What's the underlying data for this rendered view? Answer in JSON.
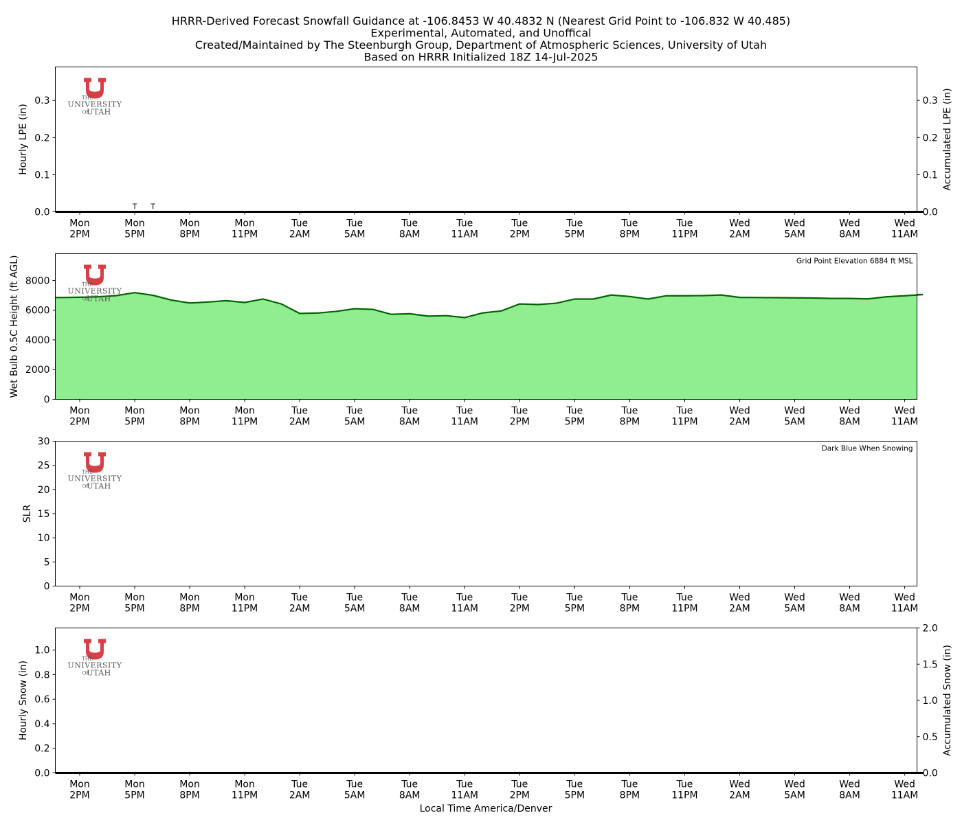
{
  "title_lines": [
    "HRRR-Derived Forecast Snowfall Guidance at -106.8453 W 40.4832 N (Nearest Grid Point to -106.832 W 40.485)",
    "Experimental, Automated, and Unoffical",
    "Created/Maintained by The Steenburgh Group, Department of Atmospheric Sciences, University of Utah",
    "Based on HRRR Initialized 18Z 14-Jul-2025"
  ],
  "logo": {
    "line1": "THE",
    "line2": "UNIVERSITY",
    "line3_prefix": "OF",
    "line3": "UTAH",
    "color": "#d64045"
  },
  "x_axis_label": "Local Time America/Denver",
  "x_ticks": [
    {
      "day": "Mon",
      "time": "2PM"
    },
    {
      "day": "Mon",
      "time": "5PM"
    },
    {
      "day": "Mon",
      "time": "8PM"
    },
    {
      "day": "Mon",
      "time": "11PM"
    },
    {
      "day": "Tue",
      "time": "2AM"
    },
    {
      "day": "Tue",
      "time": "5AM"
    },
    {
      "day": "Tue",
      "time": "8AM"
    },
    {
      "day": "Tue",
      "time": "11AM"
    },
    {
      "day": "Tue",
      "time": "2PM"
    },
    {
      "day": "Tue",
      "time": "5PM"
    },
    {
      "day": "Tue",
      "time": "8PM"
    },
    {
      "day": "Tue",
      "time": "11PM"
    },
    {
      "day": "Wed",
      "time": "2AM"
    },
    {
      "day": "Wed",
      "time": "5AM"
    },
    {
      "day": "Wed",
      "time": "8AM"
    },
    {
      "day": "Wed",
      "time": "11AM"
    }
  ],
  "chart_data": [
    {
      "type": "bar",
      "ylabel": "Hourly LPE (in)",
      "ylabel_right": "Accumulated LPE (in)",
      "ylim": [
        0,
        0.39
      ],
      "y_ticks": [
        "0.0",
        "0.1",
        "0.2",
        "0.3"
      ],
      "y_ticks_right": [
        "0.0",
        "0.1",
        "0.2",
        "0.3"
      ],
      "hours": [
        13,
        14,
        15,
        16,
        17,
        18,
        19,
        20,
        21,
        22,
        23,
        24,
        25,
        26,
        27,
        28,
        29,
        30,
        31,
        32,
        33,
        34,
        35,
        36,
        37,
        38,
        39,
        40,
        41,
        42,
        43,
        44,
        45,
        46,
        47,
        48,
        49,
        50,
        51,
        52,
        53,
        54,
        55,
        56,
        57,
        58,
        59,
        60
      ],
      "hourly_lpe": [
        0,
        0,
        0,
        0,
        0,
        0,
        0,
        0,
        0,
        0,
        0,
        0,
        0,
        0,
        0,
        0,
        0,
        0,
        0,
        0,
        0,
        0,
        0,
        0,
        0,
        0,
        0,
        0,
        0,
        0,
        0,
        0,
        0,
        0,
        0,
        0,
        0,
        0,
        0,
        0,
        0,
        0,
        0,
        0,
        0,
        0,
        0,
        0
      ],
      "accumulated_lpe": [
        0,
        0,
        0,
        0,
        0,
        0,
        0,
        0,
        0,
        0,
        0,
        0,
        0,
        0,
        0,
        0,
        0,
        0,
        0,
        0,
        0,
        0,
        0,
        0,
        0,
        0,
        0,
        0,
        0,
        0,
        0,
        0,
        0,
        0,
        0,
        0,
        0,
        0,
        0,
        0,
        0,
        0,
        0,
        0,
        0,
        0,
        0,
        0
      ],
      "annotations": [
        {
          "text": "T",
          "hour": 17
        },
        {
          "text": "T",
          "hour": 18
        }
      ],
      "colors": {
        "accum_line": "#000000"
      }
    },
    {
      "type": "area",
      "ylabel": "Wet Bulb 0.5C Height (ft AGL)",
      "ylim": [
        0,
        9800
      ],
      "y_ticks": [
        "0",
        "2000",
        "4000",
        "6000",
        "8000"
      ],
      "note": "Grid Point Elevation 6884 ft MSL",
      "hours": [
        13,
        14,
        15,
        16,
        17,
        18,
        19,
        20,
        21,
        22,
        23,
        24,
        25,
        26,
        27,
        28,
        29,
        30,
        31,
        32,
        33,
        34,
        35,
        36,
        37,
        38,
        39,
        40,
        41,
        42,
        43,
        44,
        45,
        46,
        47,
        48,
        49,
        50,
        51,
        52,
        53,
        54,
        55,
        56,
        57,
        58,
        59,
        60
      ],
      "values": [
        6850,
        6870,
        6900,
        6980,
        7180,
        7000,
        6680,
        6480,
        6550,
        6640,
        6520,
        6750,
        6420,
        5780,
        5810,
        5920,
        6100,
        6050,
        5720,
        5760,
        5600,
        5630,
        5500,
        5820,
        5950,
        6420,
        6380,
        6470,
        6750,
        6750,
        7020,
        6920,
        6750,
        6970,
        6970,
        6980,
        7020,
        6860,
        6850,
        6840,
        6830,
        6820,
        6790,
        6790,
        6760,
        6900,
        6970,
        7050
      ],
      "colors": {
        "fill": "#90ee90",
        "line": "#006400"
      }
    },
    {
      "type": "line",
      "ylabel": "SLR",
      "ylim": [
        0,
        30
      ],
      "y_ticks": [
        "0",
        "5",
        "10",
        "15",
        "20",
        "25",
        "30"
      ],
      "note": "Dark Blue When Snowing",
      "values": []
    },
    {
      "type": "bar",
      "ylabel": "Hourly Snow (in)",
      "ylabel_right": "Accumulated Snow (in)",
      "ylim": [
        0,
        1.18
      ],
      "y_ticks": [
        "0.0",
        "0.2",
        "0.4",
        "0.6",
        "0.8",
        "1.0"
      ],
      "ylim_right": [
        0,
        2.0
      ],
      "y_ticks_right": [
        "0.0",
        "0.5",
        "1.0",
        "1.5",
        "2.0"
      ],
      "hours": [
        13,
        14,
        15,
        16,
        17,
        18,
        19,
        20,
        21,
        22,
        23,
        24,
        25,
        26,
        27,
        28,
        29,
        30,
        31,
        32,
        33,
        34,
        35,
        36,
        37,
        38,
        39,
        40,
        41,
        42,
        43,
        44,
        45,
        46,
        47,
        48,
        49,
        50,
        51,
        52,
        53,
        54,
        55,
        56,
        57,
        58,
        59,
        60
      ],
      "hourly_snow": [
        0,
        0,
        0,
        0,
        0,
        0,
        0,
        0,
        0,
        0,
        0,
        0,
        0,
        0,
        0,
        0,
        0,
        0,
        0,
        0,
        0,
        0,
        0,
        0,
        0,
        0,
        0,
        0,
        0,
        0,
        0,
        0,
        0,
        0,
        0,
        0,
        0,
        0,
        0,
        0,
        0,
        0,
        0,
        0,
        0,
        0,
        0,
        0
      ],
      "accumulated_snow": [
        0,
        0,
        0,
        0,
        0,
        0,
        0,
        0,
        0,
        0,
        0,
        0,
        0,
        0,
        0,
        0,
        0,
        0,
        0,
        0,
        0,
        0,
        0,
        0,
        0,
        0,
        0,
        0,
        0,
        0,
        0,
        0,
        0,
        0,
        0,
        0,
        0,
        0,
        0,
        0,
        0,
        0,
        0,
        0,
        0,
        0,
        0,
        0
      ],
      "colors": {
        "accum_line": "#000000"
      }
    }
  ]
}
